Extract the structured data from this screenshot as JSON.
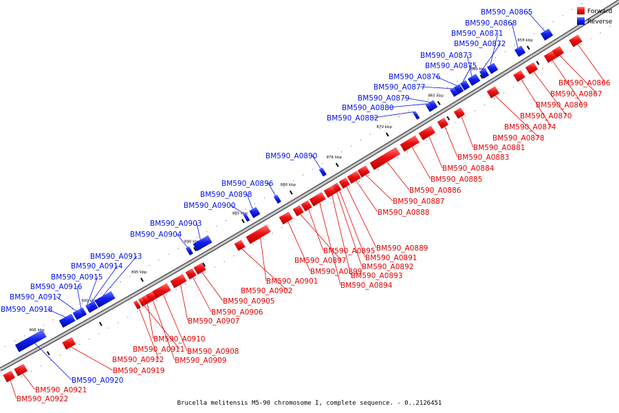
{
  "colors": {
    "forward": "#e00000",
    "forward_light": "#ff6a6a",
    "reverse": "#0010e6",
    "reverse_light": "#5a66ff",
    "backbone": "#666666",
    "backbone_light": "#bbbbbb"
  },
  "legend": {
    "forward": "Forward",
    "reverse": "Reverse"
  },
  "caption": "Brucella melitensis M5-90 chromosome I, complete sequence. - 0..2126451",
  "ticks": [
    "855 kbp",
    "860 kbp",
    "865 kbp",
    "870 kbp",
    "875 kbp",
    "880 kbp",
    "885 kbp",
    "890 kbp",
    "895 kbp",
    "900 kbp",
    "905 kbp"
  ],
  "forward_genes": [
    "BM590_A0866",
    "BM590_A0867",
    "BM590_A0869",
    "BM590_A0870",
    "BM590_A0874",
    "BM590_A0878",
    "BM590_A0881",
    "BM590_A0883",
    "BM590_A0884",
    "BM590_A0885",
    "BM590_A0886",
    "BM590_A0887",
    "BM590_A0888",
    "BM590_A0889",
    "BM590_A0891",
    "BM590_A0892",
    "BM590_A0893",
    "BM590_A0894",
    "BM590_A0895",
    "BM590_A0897",
    "BM590_A0899",
    "BM590_A0901",
    "BM590_A0902",
    "BM590_A0905",
    "BM590_A0906",
    "BM590_A0907",
    "BM590_A0908",
    "BM590_A0909",
    "BM590_A0910",
    "BM590_A0911",
    "BM590_A0912",
    "BM590_A0919",
    "BM590_A0921",
    "BM590_A0922"
  ],
  "reverse_genes": [
    "BM590_A0865",
    "BM590_A0868",
    "BM590_A0871",
    "BM590_A0872",
    "BM590_A0873",
    "BM590_A0875",
    "BM590_A0876",
    "BM590_A0877",
    "BM590_A0879",
    "BM590_A0880",
    "BM590_A0882",
    "BM590_A0890",
    "BM590_A0896",
    "BM590_A0898",
    "BM590_A0900",
    "BM590_A0903",
    "BM590_A0904",
    "BM590_A0913",
    "BM590_A0914",
    "BM590_A0915",
    "BM590_A0916",
    "BM590_A0917",
    "BM590_A0918",
    "BM590_A0920"
  ]
}
